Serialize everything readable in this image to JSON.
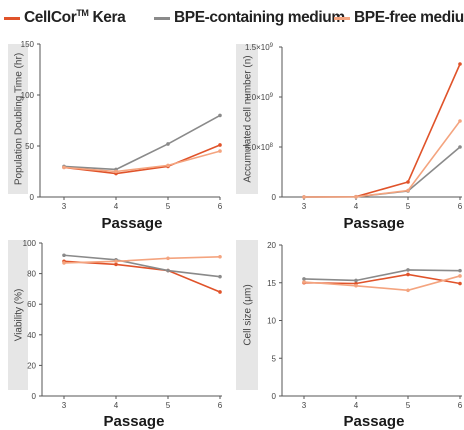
{
  "legend": [
    {
      "label": "CellCor",
      "sup": "TM",
      "suffix": " Kera",
      "color": "#e0532a"
    },
    {
      "label": "BPE-containing medium",
      "color": "#8a8a8a"
    },
    {
      "label": "BPE-free medium",
      "color": "#f4a47f"
    }
  ],
  "chart_data": [
    {
      "type": "line",
      "x": [
        3,
        4,
        5,
        6
      ],
      "xlabel": "Passage",
      "ylabel": "Population Doubling Time (hr)",
      "ylim": [
        0,
        150
      ],
      "yticks": [
        "0",
        "50",
        "100",
        "150"
      ],
      "series": [
        {
          "name": "CellCor™ Kera",
          "color": "#e0532a",
          "values": [
            29,
            23,
            30,
            51
          ]
        },
        {
          "name": "BPE-containing medium",
          "color": "#8a8a8a",
          "values": [
            30,
            27,
            52,
            80
          ]
        },
        {
          "name": "BPE-free medium",
          "color": "#f4a47f",
          "values": [
            29,
            25,
            31,
            45
          ]
        }
      ]
    },
    {
      "type": "line",
      "x": [
        3,
        4,
        5,
        6
      ],
      "xlabel": "Passage",
      "ylabel": "Accumulated cell number (n)",
      "ylim": [
        0,
        1500000000
      ],
      "yticks": [
        "0",
        "5.0×10",
        "1.0×10",
        "1.5×10"
      ],
      "ytick_exp": [
        "",
        "8",
        "9",
        "9"
      ],
      "series": [
        {
          "name": "CellCor™ Kera",
          "color": "#e0532a",
          "values": [
            0,
            3000000,
            150000000,
            1330000000
          ]
        },
        {
          "name": "BPE-containing medium",
          "color": "#8a8a8a",
          "values": [
            0,
            2000000,
            60000000,
            500000000
          ]
        },
        {
          "name": "BPE-free medium",
          "color": "#f4a47f",
          "values": [
            0,
            2000000,
            65000000,
            760000000
          ]
        }
      ]
    },
    {
      "type": "line",
      "x": [
        3,
        4,
        5,
        6
      ],
      "xlabel": "Passage",
      "ylabel": "Viability (%)",
      "ylim": [
        0,
        100
      ],
      "yticks": [
        "0",
        "20",
        "40",
        "60",
        "80",
        "100"
      ],
      "series": [
        {
          "name": "CellCor™ Kera",
          "color": "#e0532a",
          "values": [
            88,
            86,
            82,
            68
          ]
        },
        {
          "name": "BPE-containing medium",
          "color": "#8a8a8a",
          "values": [
            92,
            89,
            82,
            78
          ]
        },
        {
          "name": "BPE-free medium",
          "color": "#f4a47f",
          "values": [
            87,
            88,
            90,
            91
          ]
        }
      ]
    },
    {
      "type": "line",
      "x": [
        3,
        4,
        5,
        6
      ],
      "xlabel": "Passage",
      "ylabel": "Cell size (μm)",
      "ylim": [
        0,
        20
      ],
      "yticks": [
        "0",
        "5",
        "10",
        "15",
        "20"
      ],
      "series": [
        {
          "name": "CellCor™ Kera",
          "color": "#e0532a",
          "values": [
            15.0,
            14.9,
            16.1,
            14.9
          ]
        },
        {
          "name": "BPE-containing medium",
          "color": "#8a8a8a",
          "values": [
            15.5,
            15.3,
            16.7,
            16.6
          ]
        },
        {
          "name": "BPE-free medium",
          "color": "#f4a47f",
          "values": [
            15.1,
            14.6,
            14.0,
            15.9
          ]
        }
      ]
    }
  ]
}
